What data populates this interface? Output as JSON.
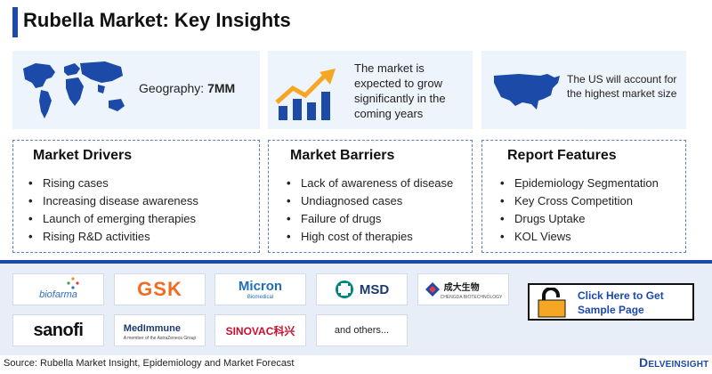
{
  "title": "Rubella Market: Key Insights",
  "colors": {
    "accent": "#1b4aa8",
    "card_bg": "#eef4fb",
    "band_bg": "#e7eef8",
    "growth_arrow": "#f5a623",
    "growth_bars": "#1b4aa8"
  },
  "top_cards": {
    "geography": {
      "label": "Geography: ",
      "value": "7MM",
      "icon": "world-map-icon"
    },
    "growth": {
      "text": "The market is expected to grow significantly in the coming years",
      "icon": "growth-chart-icon"
    },
    "us": {
      "text": "The US will account for the highest market size",
      "icon": "us-map-icon"
    }
  },
  "drivers": {
    "title": "Market Drivers",
    "items": [
      "Rising cases",
      "Increasing disease awareness",
      "Launch of emerging therapies",
      "Rising R&D activities"
    ]
  },
  "barriers": {
    "title": "Market Barriers",
    "items": [
      "Lack of awareness of disease",
      "Undiagnosed cases",
      "Failure of drugs",
      "High cost of therapies"
    ]
  },
  "features": {
    "title": "Report Features",
    "items": [
      "Epidemiology Segmentation",
      "Key Cross Competition",
      "Drugs Uptake",
      "KOL Views"
    ]
  },
  "logos": {
    "biofarma": "biofarma",
    "gsk": "GSK",
    "micron": "Micron",
    "micron_sub": "Biomedical",
    "msd": "MSD",
    "chengda": "成大生物",
    "chengda_sub": "CHENGDA BIOTECHNOLOGY",
    "sanofi": "sanofi",
    "medimmune": "MedImmune",
    "medimmune_sub": "A member of the AstraZeneca Group",
    "sinovac": "SINOVAC科兴",
    "others": "and others..."
  },
  "sample": {
    "label": "Click Here to Get Sample Page",
    "icon": "lock-icon"
  },
  "footer": {
    "source": "Source: Rubella Market Insight, Epidemiology and Market Forecast",
    "brand_initial": "D",
    "brand_rest": "ELVEINSIGHT"
  }
}
